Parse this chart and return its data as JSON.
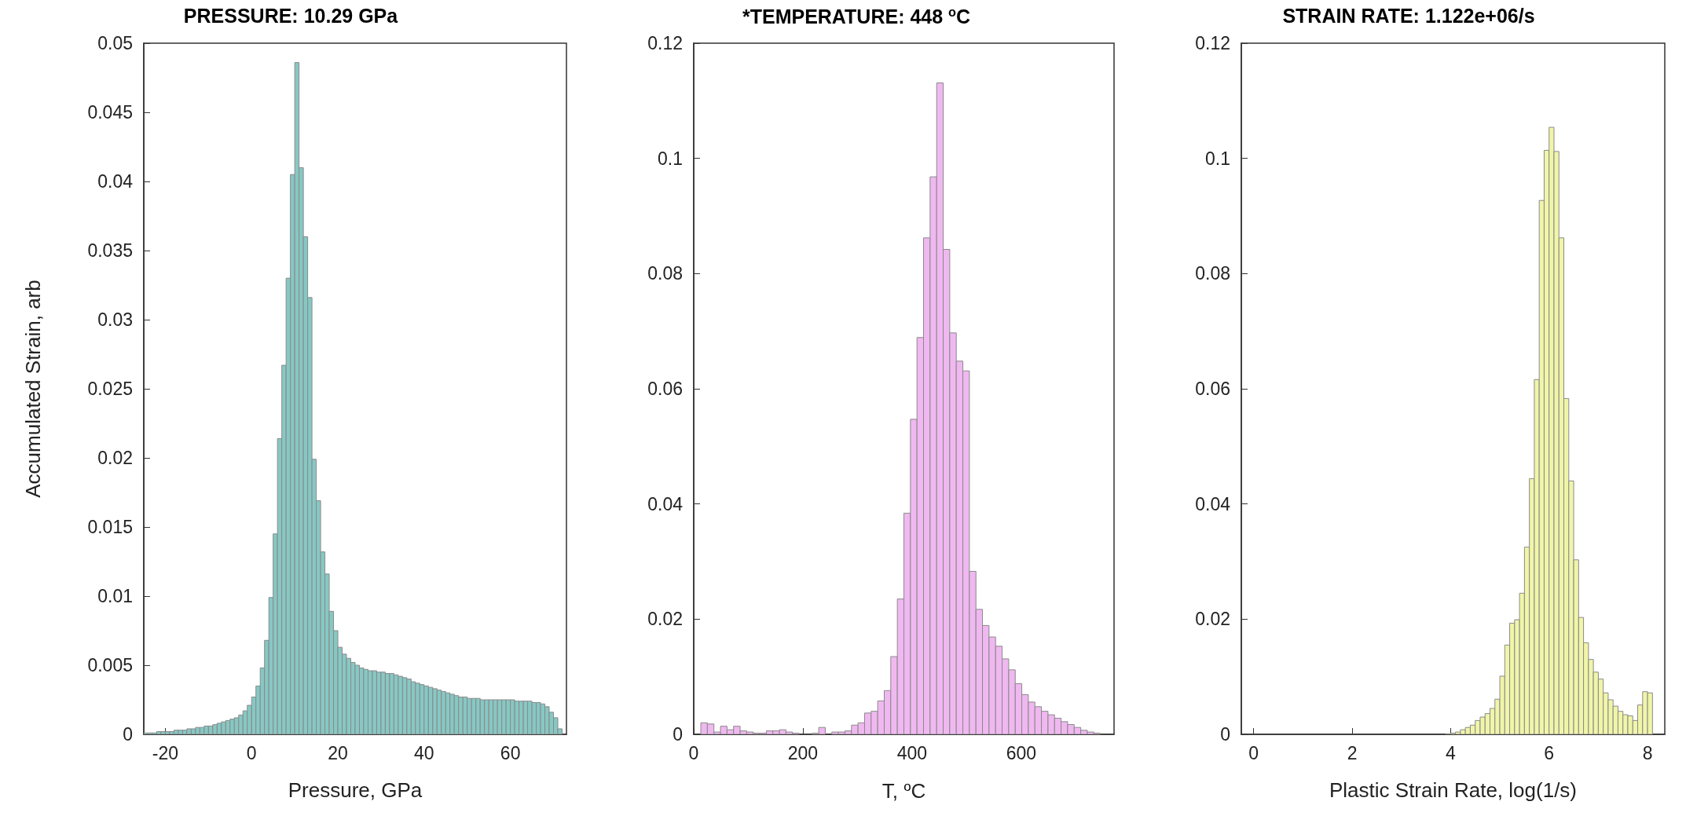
{
  "chart_data": [
    {
      "type": "histogram",
      "title": "PRESSURE: 10.29 GPa",
      "xlabel": "Pressure, GPa",
      "ylabel": "Accumulated Strain, arb",
      "color": "#86c8c4",
      "grid": false,
      "bins": [
        -25,
        -24,
        -23,
        -22,
        -21,
        -20,
        -19,
        -18,
        -17,
        -16,
        -15,
        -14,
        -13,
        -12,
        -11,
        -10,
        -9,
        -8,
        -7,
        -6,
        -5,
        -4,
        -3,
        -2,
        -1,
        0,
        1,
        2,
        3,
        4,
        5,
        6,
        7,
        8,
        9,
        10,
        11,
        12,
        13,
        14,
        15,
        16,
        17,
        18,
        19,
        20,
        21,
        22,
        23,
        24,
        25,
        26,
        27,
        28,
        29,
        30,
        31,
        32,
        33,
        34,
        35,
        36,
        37,
        38,
        39,
        40,
        41,
        42,
        43,
        44,
        45,
        46,
        47,
        48,
        49,
        50,
        51,
        52,
        53,
        54,
        55,
        56,
        57,
        58,
        59,
        60,
        61,
        62,
        63,
        64,
        65,
        66,
        67,
        68,
        69,
        70,
        71,
        72
      ],
      "values": [
        0.0001,
        0.0001,
        0.0001,
        0.0002,
        0.0002,
        0.0002,
        0.0002,
        0.0003,
        0.0003,
        0.0003,
        0.0004,
        0.0004,
        0.0005,
        0.0005,
        0.0006,
        0.0006,
        0.0007,
        0.0008,
        0.0009,
        0.001,
        0.0011,
        0.0012,
        0.0014,
        0.0017,
        0.0021,
        0.0027,
        0.0035,
        0.0048,
        0.0068,
        0.0099,
        0.0145,
        0.0214,
        0.0267,
        0.033,
        0.0405,
        0.0486,
        0.041,
        0.036,
        0.0316,
        0.0199,
        0.0169,
        0.0132,
        0.0116,
        0.0089,
        0.0075,
        0.0063,
        0.0058,
        0.0055,
        0.0052,
        0.005,
        0.0048,
        0.0047,
        0.0046,
        0.0046,
        0.0045,
        0.0045,
        0.0044,
        0.0044,
        0.0043,
        0.0042,
        0.0041,
        0.004,
        0.0038,
        0.0037,
        0.0036,
        0.0035,
        0.0034,
        0.0033,
        0.0032,
        0.0031,
        0.003,
        0.0029,
        0.0028,
        0.0027,
        0.0027,
        0.0026,
        0.0026,
        0.0026,
        0.0025,
        0.0025,
        0.0025,
        0.0025,
        0.0025,
        0.0025,
        0.0025,
        0.0025,
        0.0024,
        0.0024,
        0.0024,
        0.0024,
        0.0023,
        0.0023,
        0.0022,
        0.002,
        0.0016,
        0.0012,
        0.0004
      ],
      "xlim": [
        -25,
        73
      ],
      "xticks": [
        -20,
        0,
        20,
        40,
        60
      ],
      "ylim": [
        0,
        0.05
      ],
      "yticks": [
        0,
        0.005,
        0.01,
        0.015,
        0.02,
        0.025,
        0.03,
        0.035,
        0.04,
        0.045,
        0.05
      ]
    },
    {
      "type": "histogram",
      "title": "*TEMPERATURE: 448 $^{o}$C",
      "xlabel": "T, $^{o}$C",
      "color": "#f0b8f0",
      "grid": false,
      "bins": [
        13,
        25,
        37,
        49,
        61,
        73,
        85,
        97,
        109,
        121,
        133,
        145,
        157,
        169,
        181,
        193,
        205,
        217,
        229,
        241,
        253,
        265,
        277,
        289,
        301,
        313,
        325,
        337,
        349,
        361,
        373,
        385,
        397,
        409,
        421,
        433,
        445,
        457,
        469,
        481,
        493,
        505,
        517,
        529,
        541,
        553,
        565,
        577,
        589,
        601,
        613,
        625,
        637,
        649,
        661,
        673,
        685,
        697,
        709,
        721,
        733,
        745
      ],
      "values": [
        0.002,
        0.0018,
        0.0004,
        0.0014,
        0.0008,
        0.0014,
        0.0006,
        0.0004,
        0.0002,
        0.0002,
        0.0006,
        0.0006,
        0.0008,
        0.0004,
        0.0002,
        null,
        null,
        0.0002,
        0.0012,
        null,
        0.0004,
        0.0004,
        0.0006,
        0.0016,
        0.002,
        0.0037,
        0.004,
        0.0058,
        0.0076,
        0.0135,
        0.0235,
        0.0384,
        0.0547,
        0.0689,
        0.0862,
        0.0968,
        0.1131,
        0.0842,
        0.0697,
        0.0648,
        0.0631,
        0.0283,
        0.0217,
        0.0189,
        0.0169,
        0.0153,
        0.0131,
        0.0112,
        0.0088,
        0.0069,
        0.0056,
        0.0048,
        0.004,
        0.0034,
        0.0028,
        0.0022,
        0.0017,
        0.0012,
        0.0007,
        0.0004,
        0.0002
      ],
      "xlim": [
        0,
        770
      ],
      "xticks": [
        0,
        200,
        400,
        600
      ],
      "ylim": [
        0,
        0.12
      ],
      "yticks": [
        0,
        0.02,
        0.04,
        0.06,
        0.08,
        0.1,
        0.12
      ]
    },
    {
      "type": "histogram",
      "title": "STRAIN RATE: 1.122e+06/s",
      "xlabel": "Plastic Strain Rate, log(1/s)",
      "color": "#f0f5a8",
      "grid": false,
      "bins": [
        3.9,
        4.0,
        4.1,
        4.2,
        4.3,
        4.4,
        4.5,
        4.6,
        4.7,
        4.8,
        4.9,
        5.0,
        5.1,
        5.2,
        5.3,
        5.4,
        5.5,
        5.6,
        5.7,
        5.8,
        5.9,
        6.0,
        6.1,
        6.2,
        6.3,
        6.4,
        6.5,
        6.6,
        6.7,
        6.8,
        6.9,
        7.0,
        7.1,
        7.2,
        7.3,
        7.4,
        7.5,
        7.6,
        7.7,
        7.8,
        7.9,
        8.0,
        8.1
      ],
      "values": [
        0.0001,
        0.0002,
        0.0004,
        0.0008,
        0.0012,
        0.0016,
        0.0024,
        0.003,
        0.0036,
        0.0045,
        0.0061,
        0.0101,
        0.0155,
        0.0193,
        0.0199,
        0.0245,
        0.0325,
        0.0444,
        0.0616,
        0.0927,
        0.1014,
        0.1054,
        0.1012,
        0.0862,
        0.0583,
        0.044,
        0.0303,
        0.0203,
        0.0159,
        0.013,
        0.0108,
        0.0096,
        0.0072,
        0.006,
        0.0049,
        0.004,
        0.0034,
        0.0032,
        0.0024,
        0.0051,
        0.0074,
        0.0072
      ],
      "xlim": [
        -0.25,
        8.35
      ],
      "xticks": [
        0,
        2,
        4,
        6,
        8
      ],
      "ylim": [
        0,
        0.12
      ],
      "yticks": [
        0,
        0.02,
        0.04,
        0.06,
        0.08,
        0.1,
        0.12
      ]
    }
  ]
}
